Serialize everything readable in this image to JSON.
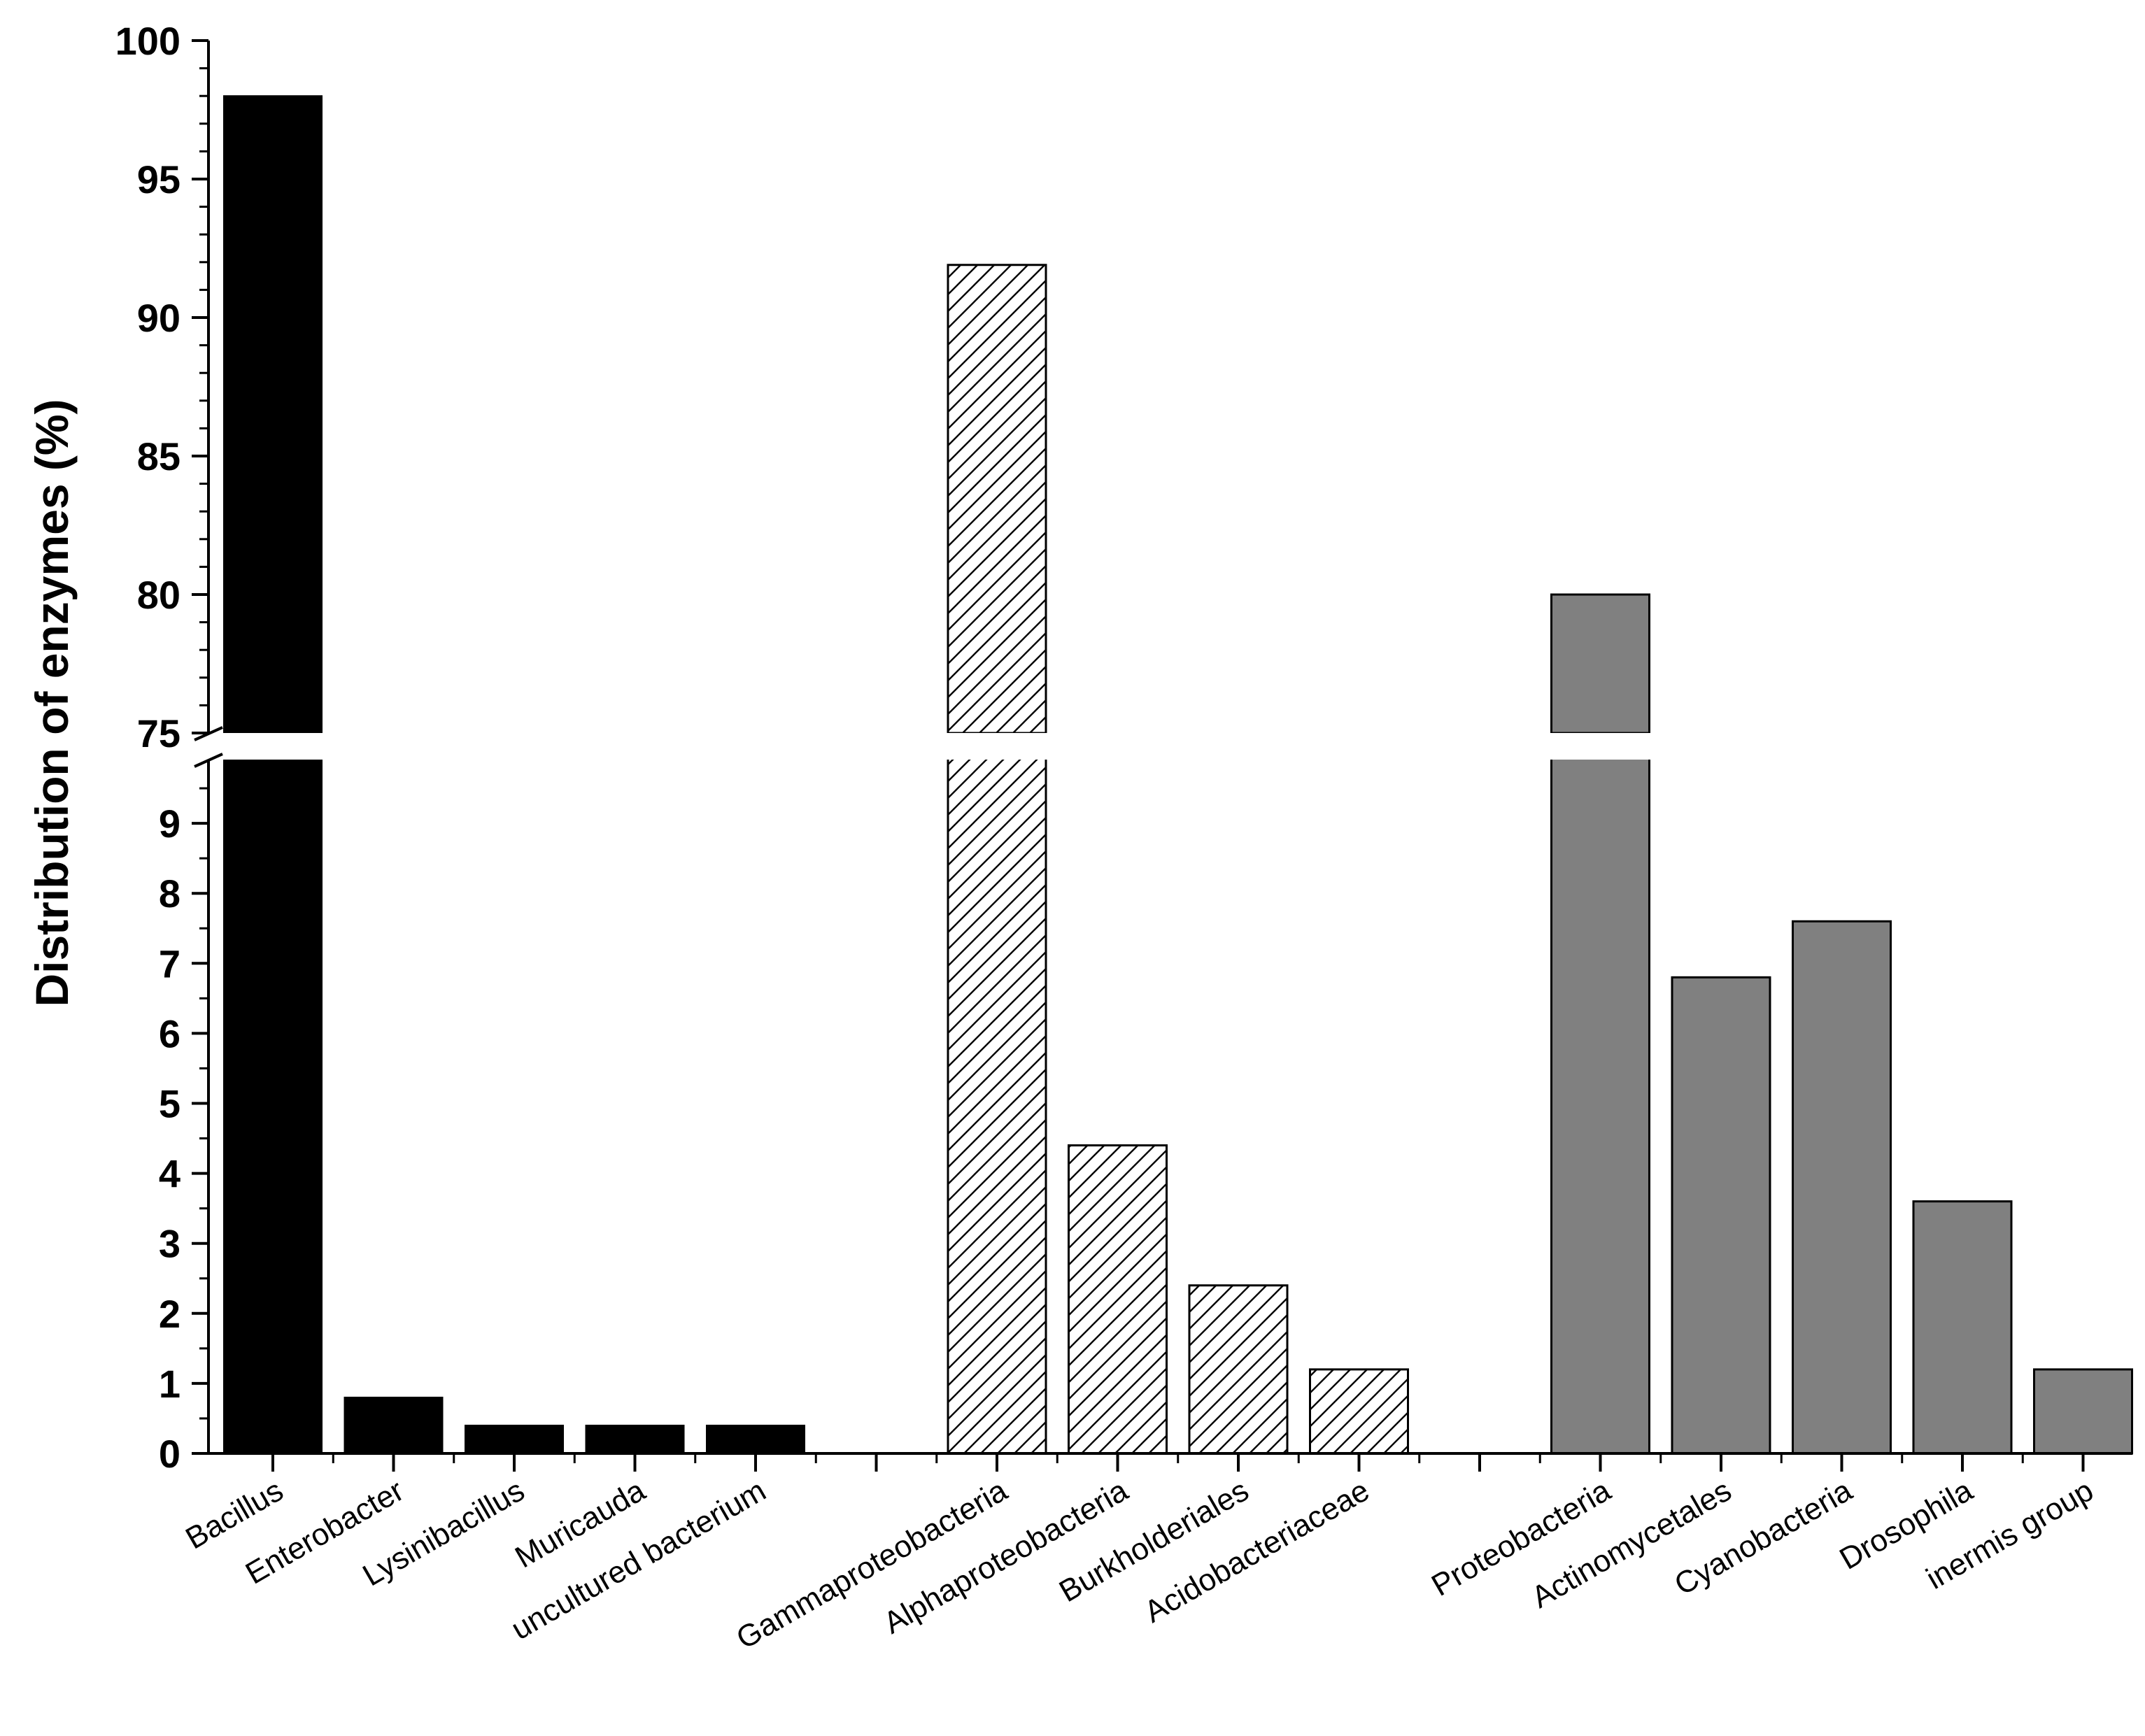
{
  "chart_data": {
    "type": "bar",
    "title": "",
    "xlabel": "",
    "ylabel": "Distribution of enzymes (%)",
    "axis_break": {
      "lower_range": [
        0,
        10
      ],
      "upper_range": [
        75,
        100
      ]
    },
    "ylim": [
      0,
      100
    ],
    "y_ticks_lower": [
      "0",
      "1",
      "2",
      "3",
      "4",
      "5",
      "6",
      "7",
      "8",
      "9"
    ],
    "y_ticks_upper": [
      "75",
      "80",
      "85",
      "90",
      "95",
      "100"
    ],
    "groups": [
      {
        "style": "solid",
        "color": "#000000",
        "categories": [
          "Bacillus",
          "Enterobacter",
          "Lysinibacillus",
          "Muricauda",
          "uncultured bacterium"
        ],
        "values": [
          98.0,
          0.8,
          0.4,
          0.4,
          0.4
        ]
      },
      {
        "style": "hatched",
        "color": "#ffffff",
        "categories": [
          "Gammaproteobacteria",
          "Alphaproteobacteria",
          "Burkholderiales",
          "Acidobacteriaceae"
        ],
        "values": [
          91.9,
          4.4,
          2.4,
          1.2
        ]
      },
      {
        "style": "gray",
        "color": "#808080",
        "categories": [
          "Proteobacteria",
          "Actinomycetales",
          "Cyanobacteria",
          "Drosophila",
          "inermis group"
        ],
        "values": [
          80.0,
          6.8,
          7.6,
          3.6,
          1.2
        ]
      }
    ]
  }
}
